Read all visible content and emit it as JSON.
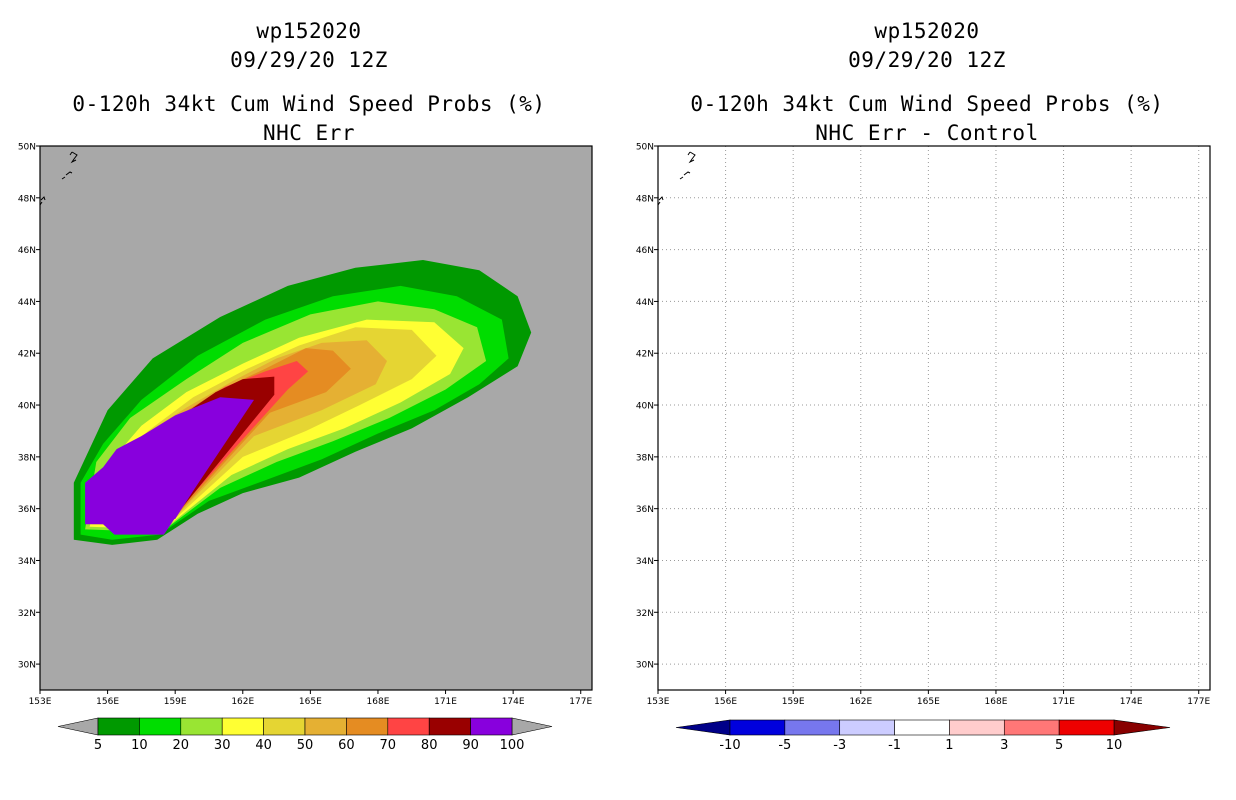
{
  "panels": [
    {
      "storm_id": "wp152020",
      "datetime": "09/29/20 12Z",
      "title": "0-120h 34kt Cum Wind Speed Probs (%)",
      "subtitle": "NHC Err",
      "map_background": "#a8a8a8",
      "colorbar": {
        "labels": [
          "5",
          "10",
          "20",
          "30",
          "40",
          "50",
          "60",
          "70",
          "80",
          "90",
          "100"
        ],
        "colors": [
          "#009900",
          "#00dd00",
          "#99e533",
          "#ffff33",
          "#e5d533",
          "#e5b033",
          "#e58c22",
          "#ff4444",
          "#990000",
          "#8800dd"
        ],
        "extend_color": "#a8a8a8"
      }
    },
    {
      "storm_id": "wp152020",
      "datetime": "09/29/20 12Z",
      "title": "0-120h 34kt Cum Wind Speed Probs (%)",
      "subtitle": "NHC Err - Control",
      "map_background": "#ffffff",
      "colorbar": {
        "labels": [
          "-10",
          "-5",
          "-3",
          "-1",
          "1",
          "3",
          "5",
          "10"
        ],
        "colors": [
          "#0000dd",
          "#7777ee",
          "#ccccff",
          "#ffffff",
          "#ffcccc",
          "#ff7777",
          "#ee0000"
        ],
        "extend_low": "#000088",
        "extend_high": "#880000"
      }
    }
  ],
  "chart_data": {
    "type": "heatmap",
    "x_axis": {
      "ticks": [
        "153E",
        "156E",
        "159E",
        "162E",
        "165E",
        "168E",
        "171E",
        "174E",
        "177E"
      ],
      "xlim": [
        153,
        177.5
      ]
    },
    "y_axis": {
      "ticks": [
        "30N",
        "32N",
        "34N",
        "36N",
        "38N",
        "40N",
        "42N",
        "44N",
        "46N",
        "48N",
        "50N"
      ],
      "ylim": [
        29,
        50
      ]
    },
    "levels": [
      5,
      10,
      20,
      30,
      40,
      50,
      60,
      70,
      80,
      90,
      100
    ],
    "contours_lonlat": [
      {
        "level": 5,
        "polygon": [
          [
            154.5,
            34.8
          ],
          [
            156.2,
            34.6
          ],
          [
            158.2,
            34.8
          ],
          [
            160,
            35.8
          ],
          [
            162,
            36.6
          ],
          [
            164.5,
            37.2
          ],
          [
            167,
            38.2
          ],
          [
            169.5,
            39.1
          ],
          [
            172,
            40.3
          ],
          [
            174.2,
            41.5
          ],
          [
            174.8,
            42.8
          ],
          [
            174.2,
            44.2
          ],
          [
            172.5,
            45.2
          ],
          [
            170,
            45.6
          ],
          [
            167,
            45.3
          ],
          [
            164,
            44.6
          ],
          [
            161,
            43.4
          ],
          [
            158,
            41.8
          ],
          [
            156,
            39.8
          ],
          [
            154.5,
            37
          ]
        ]
      },
      {
        "level": 10,
        "polygon": [
          [
            154.8,
            35
          ],
          [
            156.2,
            34.8
          ],
          [
            158.3,
            35
          ],
          [
            160.5,
            36.3
          ],
          [
            163,
            37.1
          ],
          [
            165.5,
            37.9
          ],
          [
            168,
            38.9
          ],
          [
            170.5,
            39.8
          ],
          [
            172.5,
            40.8
          ],
          [
            173.8,
            41.8
          ],
          [
            173.5,
            43.3
          ],
          [
            171.5,
            44.2
          ],
          [
            169,
            44.6
          ],
          [
            166,
            44.2
          ],
          [
            163,
            43.3
          ],
          [
            160,
            41.9
          ],
          [
            157.5,
            40.2
          ],
          [
            155.8,
            38.5
          ],
          [
            154.8,
            37
          ]
        ]
      },
      {
        "level": 20,
        "polygon": [
          [
            155,
            35.2
          ],
          [
            158.4,
            35.1
          ],
          [
            161,
            36.8
          ],
          [
            163.5,
            37.8
          ],
          [
            166,
            38.6
          ],
          [
            168.5,
            39.5
          ],
          [
            171,
            40.6
          ],
          [
            172.8,
            41.7
          ],
          [
            172.4,
            43
          ],
          [
            170.5,
            43.7
          ],
          [
            168,
            44
          ],
          [
            165,
            43.5
          ],
          [
            162,
            42.4
          ],
          [
            159.5,
            41
          ],
          [
            157,
            39.5
          ],
          [
            155.5,
            37.8
          ]
        ]
      },
      {
        "level": 30,
        "polygon": [
          [
            155.2,
            35.3
          ],
          [
            158.5,
            35.2
          ],
          [
            161.5,
            37.3
          ],
          [
            164,
            38.3
          ],
          [
            166.5,
            39.1
          ],
          [
            169,
            40.1
          ],
          [
            171.2,
            41.2
          ],
          [
            171.8,
            42.2
          ],
          [
            170.5,
            43.2
          ],
          [
            167.5,
            43.3
          ],
          [
            164.5,
            42.6
          ],
          [
            162,
            41.6
          ],
          [
            159.5,
            40.5
          ],
          [
            157.5,
            39.2
          ],
          [
            155.8,
            37.5
          ]
        ]
      },
      {
        "level": 40,
        "polygon": [
          [
            155.3,
            35.4
          ],
          [
            158.6,
            35.3
          ],
          [
            162,
            38
          ],
          [
            164.8,
            39
          ],
          [
            167.2,
            40
          ],
          [
            169.5,
            41
          ],
          [
            170.6,
            41.9
          ],
          [
            169.5,
            42.9
          ],
          [
            167,
            43
          ],
          [
            164.5,
            42.3
          ],
          [
            162.2,
            41.4
          ],
          [
            159.8,
            40.3
          ],
          [
            157.8,
            39
          ],
          [
            156,
            37.5
          ]
        ]
      },
      {
        "level": 50,
        "polygon": [
          [
            155.4,
            35.5
          ],
          [
            158.7,
            35.4
          ],
          [
            162.5,
            38.8
          ],
          [
            165.5,
            39.8
          ],
          [
            167.9,
            40.8
          ],
          [
            168.4,
            41.7
          ],
          [
            167.5,
            42.5
          ],
          [
            165.5,
            42.4
          ],
          [
            163.5,
            41.8
          ],
          [
            161.5,
            40.9
          ],
          [
            159.5,
            39.9
          ],
          [
            157.5,
            38.8
          ],
          [
            156,
            37.3
          ]
        ]
      },
      {
        "level": 60,
        "polygon": [
          [
            155.5,
            35.6
          ],
          [
            158.8,
            35.5
          ],
          [
            163.2,
            39.7
          ],
          [
            165.7,
            40.5
          ],
          [
            166.8,
            41.4
          ],
          [
            166,
            42.1
          ],
          [
            164.8,
            42.2
          ],
          [
            163,
            41.4
          ],
          [
            161,
            40.6
          ],
          [
            159,
            39.5
          ],
          [
            156.5,
            37.8
          ]
        ]
      },
      {
        "level": 70,
        "polygon": [
          [
            155.6,
            35.7
          ],
          [
            158.8,
            35.6
          ],
          [
            164,
            40.6
          ],
          [
            164.9,
            41.3
          ],
          [
            164.4,
            41.7
          ],
          [
            163,
            41.3
          ],
          [
            161.2,
            40.7
          ],
          [
            159,
            39.4
          ],
          [
            156.5,
            37.8
          ]
        ]
      },
      {
        "level": 80,
        "polygon": [
          [
            155.7,
            35.7
          ],
          [
            158.9,
            35.6
          ],
          [
            163.4,
            40.4
          ],
          [
            163.4,
            41.1
          ],
          [
            162,
            41
          ],
          [
            160.8,
            40.5
          ],
          [
            158.8,
            39.3
          ],
          [
            156.5,
            37.9
          ]
        ]
      },
      {
        "level": 90,
        "polygon": [
          [
            155.8,
            35.8
          ],
          [
            159,
            35.6
          ],
          [
            162.3,
            40.1
          ],
          [
            161,
            40.2
          ],
          [
            159.3,
            39.6
          ],
          [
            157.8,
            38.7
          ],
          [
            156.2,
            37.9
          ],
          [
            155.6,
            37.2
          ]
        ]
      },
      {
        "level": 100,
        "polygon": [
          [
            155,
            35.4
          ],
          [
            155.8,
            35.4
          ],
          [
            156.3,
            35
          ],
          [
            158.5,
            35
          ],
          [
            162.5,
            40.2
          ],
          [
            161,
            40.3
          ],
          [
            159,
            39.6
          ],
          [
            157.5,
            38.8
          ],
          [
            156.4,
            38.3
          ],
          [
            155.8,
            37.6
          ],
          [
            155,
            37
          ]
        ]
      }
    ],
    "difference_field": "none (all values between -1 and 1)"
  }
}
